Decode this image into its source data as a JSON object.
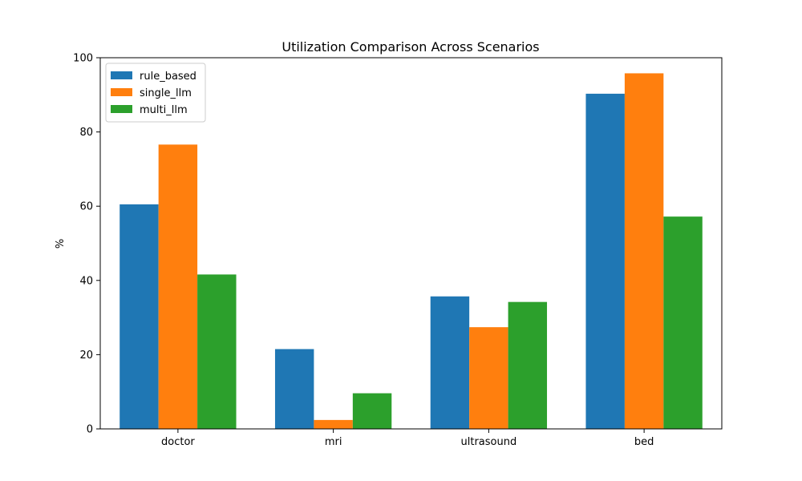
{
  "chart_data": {
    "type": "bar",
    "title": "Utilization Comparison Across Scenarios",
    "xlabel": "",
    "ylabel": "%",
    "categories": [
      "doctor",
      "mri",
      "ultrasound",
      "bed"
    ],
    "series": [
      {
        "name": "rule_based",
        "color": "#1f77b4",
        "values": [
          60.5,
          21.5,
          35.7,
          90.3
        ]
      },
      {
        "name": "single_llm",
        "color": "#ff7f0e",
        "values": [
          76.6,
          2.4,
          27.4,
          95.8
        ]
      },
      {
        "name": "multi_llm",
        "color": "#2ca02c",
        "values": [
          41.6,
          9.6,
          34.2,
          57.2
        ]
      }
    ],
    "ylim": [
      0,
      100
    ],
    "yticks": [
      0,
      20,
      40,
      60,
      80,
      100
    ],
    "grid": false,
    "legend_position": "top-left"
  }
}
